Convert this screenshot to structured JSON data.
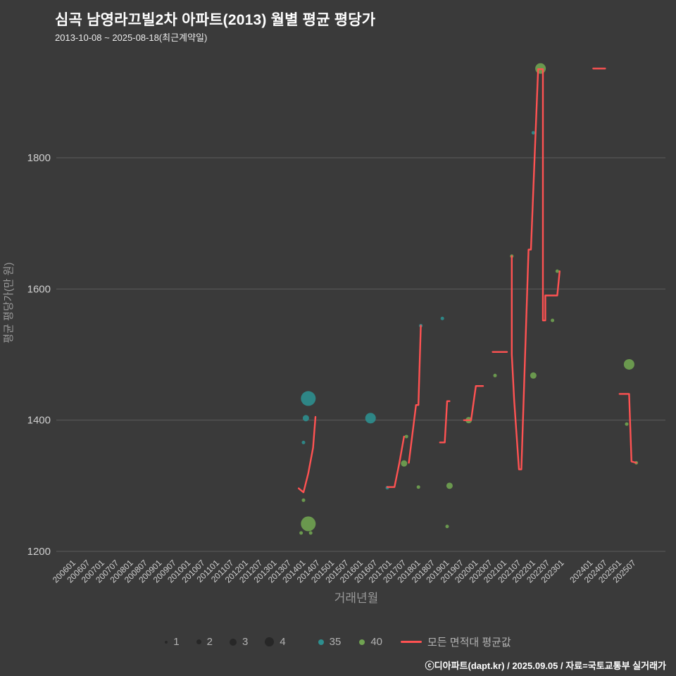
{
  "header": {
    "title": "심곡 남영라끄빌2차 아파트(2013) 월별 평균 평당가",
    "subtitle": "2013-10-08 ~ 2025-08-18(최근계약일)"
  },
  "footer": {
    "credit": "ⓒ디아파트(dapt.kr) / 2025.09.05 / 자료=국토교통부 실거래가"
  },
  "legend": {
    "sizes": [
      "1",
      "2",
      "3",
      "4"
    ],
    "series": [
      {
        "label": "35",
        "color": "#2e8f8f"
      },
      {
        "label": "40",
        "color": "#70a351"
      }
    ],
    "line": {
      "label": "모든 면적대 평균값",
      "color": "#ff5252"
    }
  },
  "chart_data": {
    "type": "scatter",
    "title": "심곡 남영라끄빌2차 아파트(2013) 월별 평균 평당가",
    "xlabel": "거래년월",
    "ylabel": "평균 평당가(만 원)",
    "y_ticks": [
      1200,
      1400,
      1600,
      1800
    ],
    "ylim": [
      1190,
      1950
    ],
    "x_ticks": [
      "200601",
      "200607",
      "200701",
      "200707",
      "200801",
      "200807",
      "200901",
      "200907",
      "201001",
      "201007",
      "201101",
      "201107",
      "201201",
      "201207",
      "201301",
      "201307",
      "201401",
      "201407",
      "201501",
      "201507",
      "201601",
      "201607",
      "201701",
      "201707",
      "201801",
      "201807",
      "201901",
      "201907",
      "202001",
      "202007",
      "202101",
      "202107",
      "202201",
      "202207",
      "202301",
      "202401",
      "202407",
      "202501",
      "202507"
    ],
    "bubble_series": [
      {
        "name": "35",
        "color": "#2e8f8f",
        "points": [
          [
            "201312",
            1366,
            1
          ],
          [
            "201401",
            1403,
            2
          ],
          [
            "201402",
            1433,
            4
          ],
          [
            "201604",
            1403,
            3
          ],
          [
            "201611",
            1297,
            1
          ],
          [
            "201801",
            1544,
            1
          ],
          [
            "201810",
            1555,
            1
          ],
          [
            "202112",
            1838,
            1
          ]
        ]
      },
      {
        "name": "40",
        "color": "#70a351",
        "points": [
          [
            "201311",
            1228,
            1
          ],
          [
            "201312",
            1278,
            1
          ],
          [
            "201402",
            1242,
            4
          ],
          [
            "201403",
            1228,
            1
          ],
          [
            "201706",
            1334,
            2
          ],
          [
            "201707",
            1375,
            1
          ],
          [
            "201712",
            1298,
            1
          ],
          [
            "201812",
            1238,
            1
          ],
          [
            "201901",
            1300,
            2
          ],
          [
            "201909",
            1400,
            2
          ],
          [
            "202008",
            1468,
            1
          ],
          [
            "202103",
            1650,
            1
          ],
          [
            "202112",
            1468,
            2
          ],
          [
            "202203",
            1936,
            3
          ],
          [
            "202208",
            1552,
            1
          ],
          [
            "202210",
            1627,
            1
          ],
          [
            "202503",
            1394,
            1
          ],
          [
            "202504",
            1485,
            3
          ],
          [
            "202507",
            1335,
            1
          ]
        ]
      }
    ],
    "avg_line": {
      "name": "모든 면적대 평균값",
      "color": "#ff5252",
      "segments": [
        [
          [
            "201310",
            1296
          ],
          [
            "201312",
            1290
          ],
          [
            "201402",
            1319
          ],
          [
            "201404",
            1358
          ],
          [
            "201405",
            1405
          ]
        ],
        [
          [
            "201611",
            1298
          ],
          [
            "201702",
            1298
          ],
          [
            "201704",
            1334
          ],
          [
            "201706",
            1375
          ]
        ],
        [
          [
            "201708",
            1335
          ],
          [
            "201711",
            1423
          ],
          [
            "201712",
            1423
          ],
          [
            "201801",
            1544
          ]
        ],
        [
          [
            "201809",
            1366
          ],
          [
            "201811",
            1366
          ],
          [
            "201812",
            1429
          ],
          [
            "201901",
            1429
          ]
        ],
        [
          [
            "201907",
            1400
          ],
          [
            "201910",
            1400
          ],
          [
            "201912",
            1452
          ],
          [
            "202003",
            1452
          ]
        ],
        [
          [
            "202007",
            1504
          ],
          [
            "202101",
            1504
          ]
        ],
        [
          [
            "202103",
            1650
          ],
          [
            "202103",
            1500
          ],
          [
            "202104",
            1430
          ],
          [
            "202106",
            1325
          ],
          [
            "202107",
            1325
          ],
          [
            "202110",
            1660
          ],
          [
            "202111",
            1660
          ],
          [
            "202202",
            1935
          ],
          [
            "202204",
            1935
          ],
          [
            "202204",
            1552
          ],
          [
            "202205",
            1552
          ],
          [
            "202205",
            1590
          ],
          [
            "202210",
            1590
          ],
          [
            "202211",
            1627
          ]
        ],
        [
          [
            "202401",
            1936
          ],
          [
            "202406",
            1936
          ]
        ],
        [
          [
            "202412",
            1440
          ],
          [
            "202504",
            1440
          ],
          [
            "202505",
            1337
          ],
          [
            "202507",
            1335
          ]
        ]
      ]
    }
  }
}
